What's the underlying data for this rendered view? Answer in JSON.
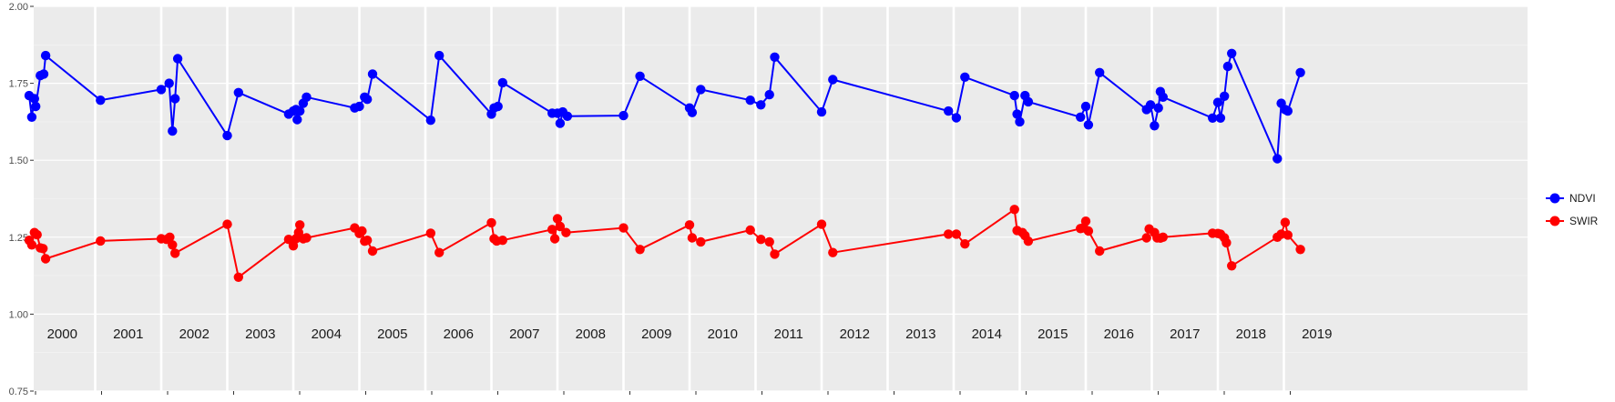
{
  "chart_data": {
    "type": "line",
    "title": "",
    "xlabel": "",
    "ylabel": "",
    "ylim": [
      0.75,
      2.0
    ],
    "yticks": [
      "0.75",
      "1.00",
      "1.25",
      "1.50",
      "1.75",
      "2.00"
    ],
    "ytick_values": [
      0.75,
      1.0,
      1.25,
      1.5,
      1.75,
      2.0
    ],
    "xlim": [
      2000,
      2020
    ],
    "panels": [
      "2000",
      "2001",
      "2002",
      "2003",
      "2004",
      "2005",
      "2006",
      "2007",
      "2008",
      "2009",
      "2010",
      "2011",
      "2012",
      "2013",
      "2014",
      "2015",
      "2016",
      "2017",
      "2018",
      "2019"
    ],
    "grid": true,
    "legend_position": "right",
    "series": [
      {
        "name": "NDVI",
        "color": "#0000FF",
        "points": [
          [
            2000.0,
            1.71
          ],
          [
            2000.04,
            1.64
          ],
          [
            2000.08,
            1.7
          ],
          [
            2000.1,
            1.675
          ],
          [
            2000.17,
            1.775
          ],
          [
            2000.22,
            1.78
          ],
          [
            2000.25,
            1.84
          ],
          [
            2001.08,
            1.695
          ],
          [
            2002.0,
            1.73
          ],
          [
            2002.12,
            1.75
          ],
          [
            2002.17,
            1.595
          ],
          [
            2002.21,
            1.7
          ],
          [
            2002.25,
            1.83
          ],
          [
            2003.0,
            1.58
          ],
          [
            2003.17,
            1.72
          ],
          [
            2003.93,
            1.65
          ],
          [
            2004.0,
            1.66
          ],
          [
            2004.04,
            1.665
          ],
          [
            2004.06,
            1.632
          ],
          [
            2004.1,
            1.66
          ],
          [
            2004.15,
            1.685
          ],
          [
            2004.2,
            1.705
          ],
          [
            2004.93,
            1.67
          ],
          [
            2005.0,
            1.675
          ],
          [
            2005.08,
            1.705
          ],
          [
            2005.12,
            1.698
          ],
          [
            2005.2,
            1.78
          ],
          [
            2006.08,
            1.63
          ],
          [
            2006.21,
            1.84
          ],
          [
            2007.0,
            1.65
          ],
          [
            2007.04,
            1.67
          ],
          [
            2007.1,
            1.675
          ],
          [
            2007.17,
            1.752
          ],
          [
            2007.92,
            1.653
          ],
          [
            2008.0,
            1.653
          ],
          [
            2008.04,
            1.62
          ],
          [
            2008.08,
            1.657
          ],
          [
            2008.15,
            1.643
          ],
          [
            2009.0,
            1.645
          ],
          [
            2009.25,
            1.773
          ],
          [
            2010.0,
            1.67
          ],
          [
            2010.04,
            1.655
          ],
          [
            2010.17,
            1.73
          ],
          [
            2010.92,
            1.695
          ],
          [
            2011.08,
            1.68
          ],
          [
            2011.21,
            1.713
          ],
          [
            2011.29,
            1.835
          ],
          [
            2012.0,
            1.657
          ],
          [
            2012.17,
            1.762
          ],
          [
            2013.92,
            1.66
          ],
          [
            2014.04,
            1.638
          ],
          [
            2014.17,
            1.77
          ],
          [
            2014.92,
            1.71
          ],
          [
            2014.96,
            1.65
          ],
          [
            2015.0,
            1.625
          ],
          [
            2015.08,
            1.71
          ],
          [
            2015.13,
            1.69
          ],
          [
            2015.92,
            1.64
          ],
          [
            2016.0,
            1.675
          ],
          [
            2016.04,
            1.615
          ],
          [
            2016.21,
            1.785
          ],
          [
            2016.92,
            1.665
          ],
          [
            2016.98,
            1.68
          ],
          [
            2017.04,
            1.612
          ],
          [
            2017.1,
            1.67
          ],
          [
            2017.13,
            1.723
          ],
          [
            2017.17,
            1.705
          ],
          [
            2017.92,
            1.637
          ],
          [
            2018.0,
            1.688
          ],
          [
            2018.04,
            1.637
          ],
          [
            2018.1,
            1.708
          ],
          [
            2018.15,
            1.805
          ],
          [
            2018.21,
            1.847
          ],
          [
            2018.9,
            1.505
          ],
          [
            2018.96,
            1.685
          ],
          [
            2019.02,
            1.665
          ],
          [
            2019.06,
            1.66
          ],
          [
            2019.25,
            1.785
          ]
        ]
      },
      {
        "name": "SWIR",
        "color": "#FF0000",
        "points": [
          [
            2000.0,
            1.24
          ],
          [
            2000.04,
            1.225
          ],
          [
            2000.08,
            1.265
          ],
          [
            2000.12,
            1.258
          ],
          [
            2000.17,
            1.215
          ],
          [
            2000.21,
            1.213
          ],
          [
            2000.25,
            1.18
          ],
          [
            2001.08,
            1.238
          ],
          [
            2002.0,
            1.245
          ],
          [
            2002.08,
            1.243
          ],
          [
            2002.13,
            1.25
          ],
          [
            2002.17,
            1.225
          ],
          [
            2002.21,
            1.198
          ],
          [
            2003.0,
            1.292
          ],
          [
            2003.17,
            1.12
          ],
          [
            2003.93,
            1.243
          ],
          [
            2004.0,
            1.222
          ],
          [
            2004.04,
            1.245
          ],
          [
            2004.08,
            1.265
          ],
          [
            2004.1,
            1.29
          ],
          [
            2004.15,
            1.245
          ],
          [
            2004.2,
            1.248
          ],
          [
            2004.93,
            1.28
          ],
          [
            2005.0,
            1.262
          ],
          [
            2005.04,
            1.27
          ],
          [
            2005.08,
            1.237
          ],
          [
            2005.12,
            1.24
          ],
          [
            2005.2,
            1.205
          ],
          [
            2006.08,
            1.263
          ],
          [
            2006.21,
            1.2
          ],
          [
            2007.0,
            1.297
          ],
          [
            2007.04,
            1.245
          ],
          [
            2007.08,
            1.238
          ],
          [
            2007.17,
            1.24
          ],
          [
            2007.92,
            1.275
          ],
          [
            2007.96,
            1.245
          ],
          [
            2008.0,
            1.31
          ],
          [
            2008.04,
            1.285
          ],
          [
            2008.13,
            1.265
          ],
          [
            2009.0,
            1.28
          ],
          [
            2009.25,
            1.21
          ],
          [
            2010.0,
            1.29
          ],
          [
            2010.04,
            1.248
          ],
          [
            2010.17,
            1.235
          ],
          [
            2010.92,
            1.273
          ],
          [
            2011.08,
            1.243
          ],
          [
            2011.21,
            1.235
          ],
          [
            2011.29,
            1.195
          ],
          [
            2012.0,
            1.292
          ],
          [
            2012.17,
            1.2
          ],
          [
            2013.92,
            1.26
          ],
          [
            2014.04,
            1.26
          ],
          [
            2014.17,
            1.228
          ],
          [
            2014.92,
            1.34
          ],
          [
            2014.96,
            1.272
          ],
          [
            2015.04,
            1.265
          ],
          [
            2015.08,
            1.255
          ],
          [
            2015.13,
            1.237
          ],
          [
            2015.92,
            1.278
          ],
          [
            2015.96,
            1.28
          ],
          [
            2016.0,
            1.302
          ],
          [
            2016.04,
            1.27
          ],
          [
            2016.21,
            1.205
          ],
          [
            2016.92,
            1.248
          ],
          [
            2016.96,
            1.277
          ],
          [
            2017.04,
            1.265
          ],
          [
            2017.08,
            1.248
          ],
          [
            2017.13,
            1.247
          ],
          [
            2017.17,
            1.25
          ],
          [
            2017.92,
            1.263
          ],
          [
            2018.0,
            1.262
          ],
          [
            2018.04,
            1.26
          ],
          [
            2018.1,
            1.248
          ],
          [
            2018.13,
            1.232
          ],
          [
            2018.21,
            1.157
          ],
          [
            2018.9,
            1.25
          ],
          [
            2018.96,
            1.26
          ],
          [
            2019.02,
            1.298
          ],
          [
            2019.06,
            1.257
          ],
          [
            2019.25,
            1.21
          ]
        ]
      }
    ]
  }
}
